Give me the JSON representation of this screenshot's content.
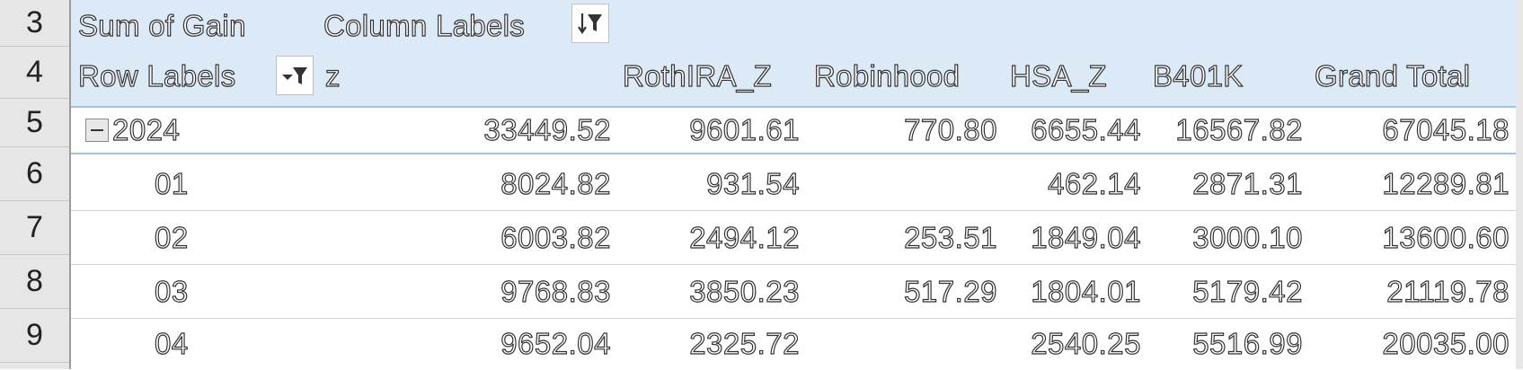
{
  "rows": [
    "3",
    "4",
    "5",
    "6",
    "7",
    "8",
    "9"
  ],
  "pivot": {
    "values_label": "Sum of Gain",
    "column_labels": "Column Labels",
    "row_labels": "Row Labels",
    "columns": [
      "z",
      "RothIRA_Z",
      "Robinhood",
      "HSA_Z",
      "B401K",
      "Grand Total"
    ],
    "year": {
      "label": "2024",
      "values": [
        "33449.52",
        "9601.61",
        "770.80",
        "6655.44",
        "16567.82",
        "67045.18"
      ]
    },
    "months": [
      {
        "label": "01",
        "values": [
          "8024.82",
          "931.54",
          "",
          "462.14",
          "2871.31",
          "12289.81"
        ]
      },
      {
        "label": "02",
        "values": [
          "6003.82",
          "2494.12",
          "253.51",
          "1849.04",
          "3000.10",
          "13600.60"
        ]
      },
      {
        "label": "03",
        "values": [
          "9768.83",
          "3850.23",
          "517.29",
          "1804.01",
          "5179.42",
          "21119.78"
        ]
      },
      {
        "label": "04",
        "values": [
          "9652.04",
          "2325.72",
          "",
          "2540.25",
          "5516.99",
          "20035.00"
        ]
      }
    ]
  },
  "icons": {
    "column_filter": "sort-filter-icon",
    "row_filter": "filter-dropdown-icon",
    "collapse": "collapse-minus-icon"
  },
  "colors": {
    "header_band": "#dce9f6",
    "header_border": "#9ec3e6",
    "row_header_bg": "#e6e6e6"
  }
}
